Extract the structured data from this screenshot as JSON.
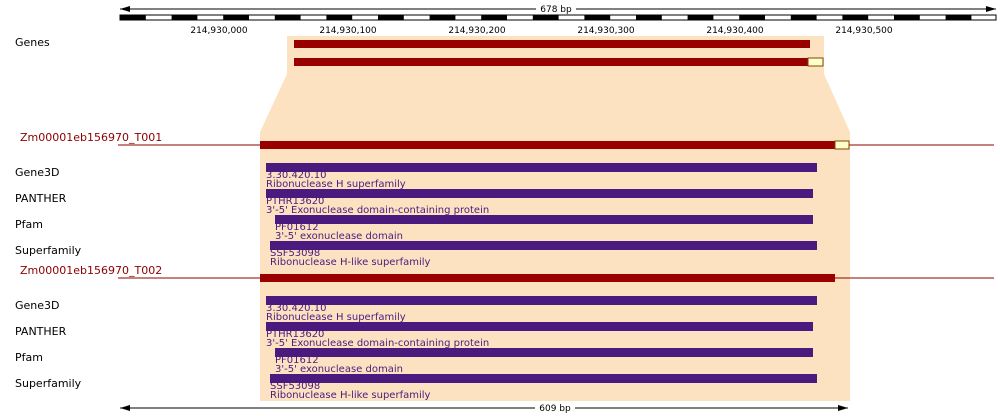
{
  "top_scale": {
    "label": "678 bp"
  },
  "bottom_scale": {
    "label": "609 bp"
  },
  "axis": {
    "ticks": [
      "214,930,000",
      "214,930,100",
      "214,930,200",
      "214,930,300",
      "214,930,400",
      "214,930,500"
    ]
  },
  "genes_track": {
    "label": "Genes"
  },
  "transcripts": [
    {
      "id": "Zm00001eb156970_T001",
      "domains": [
        {
          "source": "Gene3D",
          "id": "3.30.420.10",
          "desc": "Ribonuclease H superfamily"
        },
        {
          "source": "PANTHER",
          "id": "PTHR13620",
          "desc": "3'-5' Exonuclease domain-containing protein"
        },
        {
          "source": "Pfam",
          "id": "PF01612",
          "desc": "3'-5' exonuclease domain"
        },
        {
          "source": "Superfamily",
          "id": "SSF53098",
          "desc": "Ribonuclease H-like superfamily"
        }
      ]
    },
    {
      "id": "Zm00001eb156970_T002",
      "domains": [
        {
          "source": "Gene3D",
          "id": "3.30.420.10",
          "desc": "Ribonuclease H superfamily"
        },
        {
          "source": "PANTHER",
          "id": "PTHR13620",
          "desc": "3'-5' Exonuclease domain-containing protein"
        },
        {
          "source": "Pfam",
          "id": "PF01612",
          "desc": "3'-5' exonuclease domain"
        },
        {
          "source": "Superfamily",
          "id": "SSF53098",
          "desc": "Ribonuclease H-like superfamily"
        }
      ]
    }
  ],
  "colors": {
    "transcript": "#990000",
    "utr": "#ffffcc",
    "domain": "#4b1a7e",
    "highlight": "#fde2c2",
    "scale": "#000000"
  }
}
